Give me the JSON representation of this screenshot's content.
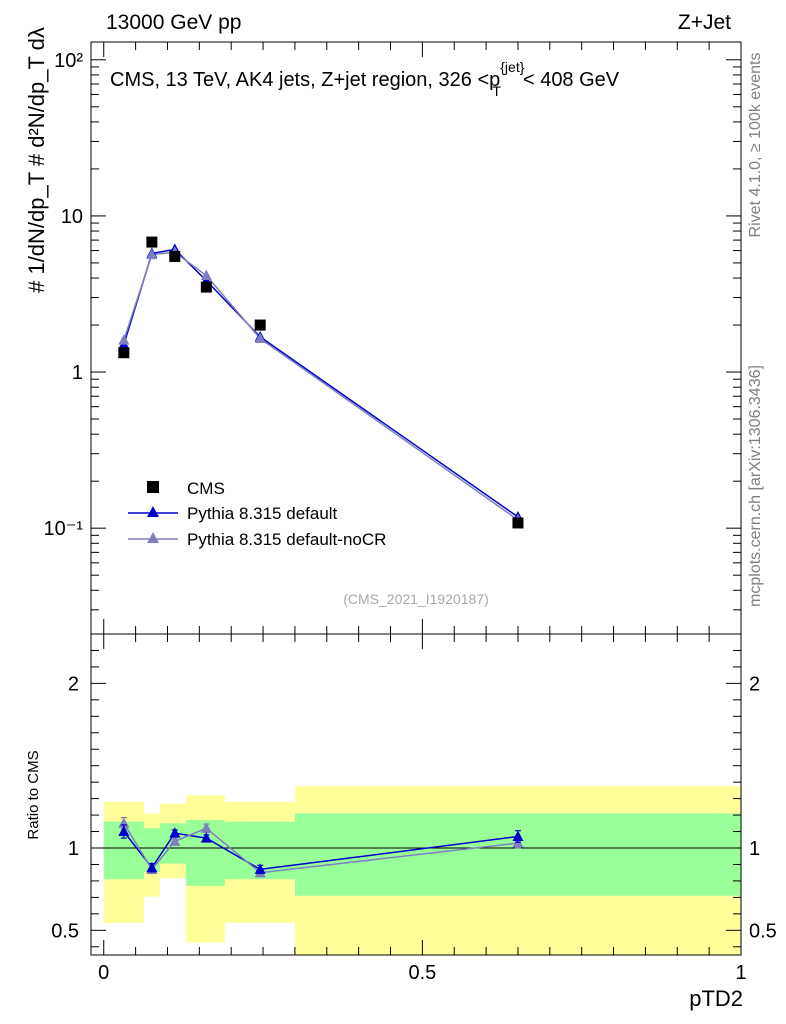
{
  "header": {
    "left": "13000 GeV pp",
    "right": "Z+Jet"
  },
  "side": {
    "rivet": "Rivet 4.1.0, ≥ 100k events",
    "mcplots": "mcplots.cern.ch [arXiv:1306.3436]"
  },
  "chart_data": [
    {
      "type": "line",
      "title": "CMS, 13 TeV, AK4 jets, Z+jet region, 326 <p_T^{jet}< 408 GeV",
      "ylabel": "1/dN/dp_T  d²N/dp_T dλ",
      "yscale": "log",
      "ylim": [
        0.021,
        130
      ],
      "xlim": [
        -0.02,
        1.0
      ],
      "ytick_labels": [
        "10⁻¹",
        "1",
        "10",
        "10²"
      ],
      "watermark": "(CMS_2021_I1920187)",
      "legend": {
        "placement": "bottom-left",
        "entries": [
          "CMS",
          "Pythia 8.315 default",
          "Pythia 8.315 default-noCR"
        ]
      },
      "series": [
        {
          "name": "CMS",
          "color": "#000000",
          "marker": "square",
          "x": [
            0.0315,
            0.0755,
            0.1115,
            0.161,
            0.2455,
            0.65
          ],
          "y": [
            1.33,
            6.8,
            5.5,
            3.5,
            2.0,
            0.108
          ]
        },
        {
          "name": "Pythia 8.315 default",
          "color": "#0000cc",
          "marker": "triangle",
          "x": [
            0.0315,
            0.0755,
            0.1115,
            0.161,
            0.2455,
            0.65
          ],
          "y": [
            1.5,
            5.75,
            6.1,
            3.85,
            1.68,
            0.118
          ]
        },
        {
          "name": "Pythia 8.315 default-noCR",
          "color": "#7f7fbf",
          "marker": "triangle",
          "x": [
            0.0315,
            0.0755,
            0.1115,
            0.161,
            0.2455,
            0.65
          ],
          "y": [
            1.6,
            5.65,
            5.85,
            4.15,
            1.64,
            0.113
          ]
        }
      ]
    },
    {
      "type": "line",
      "ylabel": "Ratio to CMS",
      "xlabel": "pTD2",
      "ylim": [
        0.35,
        2.3
      ],
      "xlim": [
        -0.02,
        1.0
      ],
      "yticks": [
        0.5,
        1,
        2
      ],
      "xticks": [
        0,
        0.5,
        1
      ],
      "ytick_labels": [
        "0.5",
        "1",
        "2"
      ],
      "xtick_labels": [
        "0",
        "0.5",
        "1"
      ],
      "bands": [
        {
          "x0": 0.0,
          "x1": 0.063,
          "yellow": [
            0.545,
            1.28
          ],
          "green": [
            0.81,
            1.16
          ]
        },
        {
          "x0": 0.063,
          "x1": 0.088,
          "yellow": [
            0.705,
            1.21
          ],
          "green": [
            0.855,
            1.12
          ]
        },
        {
          "x0": 0.088,
          "x1": 0.129,
          "yellow": [
            0.815,
            1.27
          ],
          "green": [
            0.905,
            1.15
          ]
        },
        {
          "x0": 0.129,
          "x1": 0.19,
          "yellow": [
            0.425,
            1.32
          ],
          "green": [
            0.77,
            1.17
          ]
        },
        {
          "x0": 0.19,
          "x1": 0.3,
          "yellow": [
            0.545,
            1.28
          ],
          "green": [
            0.81,
            1.16
          ]
        },
        {
          "x0": 0.3,
          "x1": 1.0,
          "yellow": [
            0.2,
            1.375
          ],
          "green": [
            0.71,
            1.21
          ]
        }
      ],
      "series": [
        {
          "name": "Pythia 8.315 default",
          "color": "#0000cc",
          "x": [
            0.0315,
            0.0755,
            0.1115,
            0.161,
            0.2455,
            0.65
          ],
          "y": [
            1.1,
            0.88,
            1.09,
            1.06,
            0.87,
            1.07
          ],
          "err": [
            0.04,
            0.025,
            0.02,
            0.02,
            0.025,
            0.035
          ]
        },
        {
          "name": "Pythia 8.315 default-noCR",
          "color": "#7f7fbf",
          "x": [
            0.0315,
            0.0755,
            0.1115,
            0.161,
            0.2455,
            0.65
          ],
          "y": [
            1.15,
            0.87,
            1.04,
            1.12,
            0.85,
            1.03
          ],
          "err": [
            0.035,
            0.025,
            0.02,
            0.025,
            0.025,
            0.03
          ]
        }
      ]
    }
  ]
}
